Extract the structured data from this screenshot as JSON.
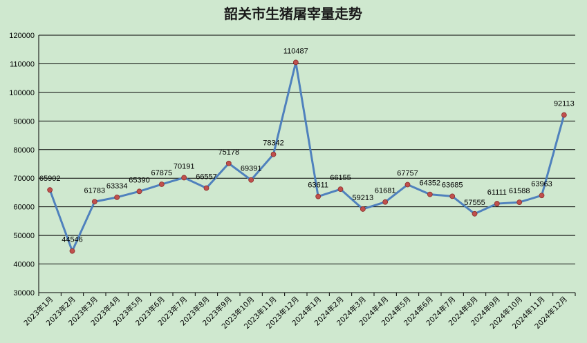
{
  "chart_data": {
    "type": "line",
    "title": "韶关市生猪屠宰量走势",
    "categories": [
      "2023年1月",
      "2023年2月",
      "2023年3月",
      "2023年4月",
      "2023年5月",
      "2023年6月",
      "2023年7月",
      "2023年8月",
      "2023年9月",
      "2023年10月",
      "2023年11月",
      "2023年12月",
      "2024年1月",
      "2024年2月",
      "2024年3月",
      "2024年4月",
      "2024年5月",
      "2024年6月",
      "2024年7月",
      "2024年8月",
      "2024年9月",
      "2024年10月",
      "2024年11月",
      "2024年12月"
    ],
    "series": [
      {
        "values": [
          65902,
          44546,
          61783,
          63334,
          65390,
          67875,
          70191,
          66557,
          75178,
          69391,
          78342,
          110487,
          63611,
          66155,
          59213,
          61681,
          67757,
          64352,
          63685,
          57555,
          61111,
          61588,
          63963,
          92113
        ],
        "line_color": "#4f81bd",
        "marker_color": "#c0504d"
      }
    ],
    "ylim": [
      30000,
      120000
    ],
    "yticks": [
      30000,
      40000,
      50000,
      60000,
      70000,
      80000,
      90000,
      100000,
      110000,
      120000
    ],
    "grid": true,
    "legend": "none",
    "xlabel": "",
    "ylabel": ""
  }
}
